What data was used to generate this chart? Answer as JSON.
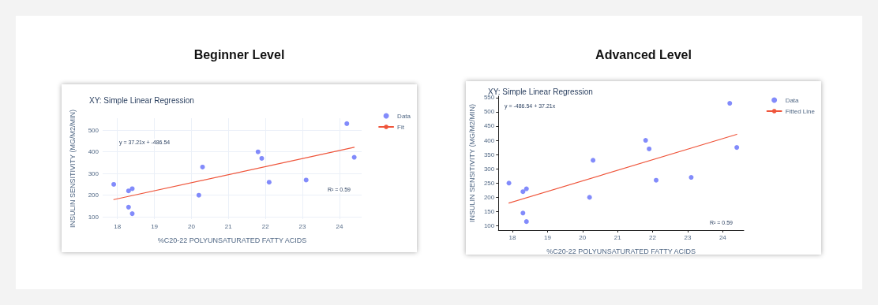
{
  "chart_data": [
    {
      "type": "scatter",
      "title": "Beginner Level",
      "subtitle": "XY: Simple Linear Regression",
      "xlabel": "%C20-22 POLYUNSATURATED FATTY ACIDS",
      "ylabel": "INSULIN SENSITIVITY (MG/M2/MIN)",
      "annotations": [
        "y = 37.21x + -486.54",
        "R² = 0.59"
      ],
      "grid": true,
      "legend": "top right",
      "xlim": [
        17.6,
        24.6
      ],
      "xticks": [
        18,
        19,
        20,
        21,
        22,
        23,
        24
      ],
      "ylim": [
        90,
        555
      ],
      "yticks": [
        100,
        200,
        300,
        400,
        500
      ],
      "series": [
        {
          "name": "Data",
          "type": "scatter",
          "marker": "circle",
          "color": "#636efa",
          "x": [
            17.9,
            18.3,
            18.3,
            18.4,
            18.4,
            20.2,
            20.3,
            21.8,
            21.9,
            22.1,
            23.1,
            24.2,
            24.4
          ],
          "values": [
            250,
            220,
            145,
            230,
            115,
            200,
            330,
            400,
            370,
            260,
            270,
            530,
            375
          ]
        },
        {
          "name": "Fit",
          "type": "line",
          "marker": "none",
          "color": "#ef553b",
          "x": [
            17.9,
            24.4
          ],
          "values": [
            180,
            421
          ]
        }
      ]
    },
    {
      "type": "scatter",
      "title": "Advanced Level",
      "subtitle": "XY: Simple Linear Regression",
      "xlabel": "%C20-22 POLYUNSATURATED FATTY ACIDS",
      "ylabel": "INSULIN SENSITIVITY (MG/M2/MIN)",
      "annotations": [
        "y = -486.54 + 37.21x",
        "R² = 0.59"
      ],
      "grid": false,
      "legend": "top right",
      "xlim": [
        17.6,
        24.6
      ],
      "xticks": [
        18,
        19,
        20,
        21,
        22,
        23,
        24
      ],
      "ylim": [
        85,
        555
      ],
      "yticks": [
        100,
        150,
        200,
        250,
        300,
        350,
        400,
        450,
        500,
        550
      ],
      "series": [
        {
          "name": "Data",
          "type": "scatter",
          "marker": "circle",
          "color": "#636efa",
          "x": [
            17.9,
            18.3,
            18.3,
            18.4,
            18.4,
            20.2,
            20.3,
            21.8,
            21.9,
            22.1,
            23.1,
            24.2,
            24.4
          ],
          "values": [
            250,
            220,
            145,
            230,
            115,
            200,
            330,
            400,
            370,
            260,
            270,
            530,
            375
          ]
        },
        {
          "name": "Fitted Line",
          "type": "line",
          "marker": "none",
          "color": "#ef553b",
          "x": [
            17.9,
            24.4
          ],
          "values": [
            180,
            421
          ]
        }
      ]
    }
  ]
}
